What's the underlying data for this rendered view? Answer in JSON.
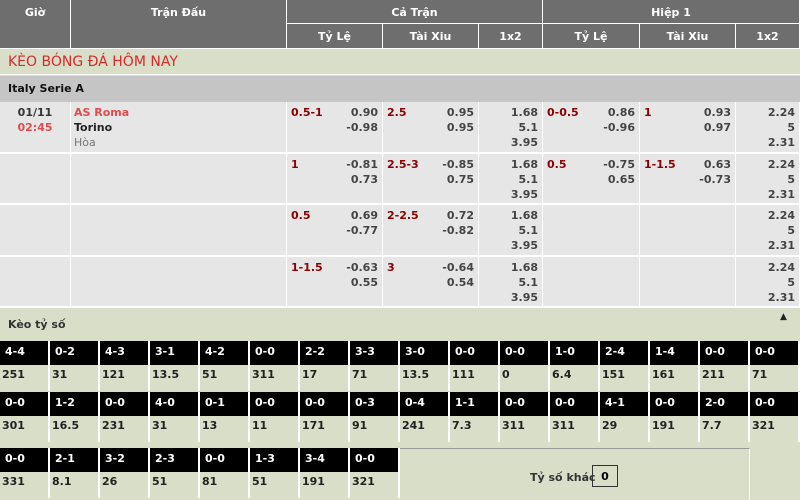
{
  "header": {
    "time": "Giờ",
    "match": "Trận Đấu",
    "full": "Cả Trận",
    "half": "Hiệp 1",
    "handicap": "Tỷ Lệ",
    "overunder": "Tài Xiu",
    "onextwo": "1x2"
  },
  "title": "KÈO BÓNG ĐÁ HÔM NAY",
  "league": "Italy Serie A",
  "match": {
    "date": "01/11",
    "time": "02:45",
    "home": "AS Roma",
    "away": "Torino",
    "draw": "Hòa"
  },
  "rows": [
    {
      "ft_hdp": "0.5-1",
      "ft_hdp_odds": [
        "0.90",
        "-0.98"
      ],
      "ft_ou": "2.5",
      "ft_ou_odds": [
        "0.95",
        "0.95"
      ],
      "ft_1x2": [
        "1.68",
        "5.1",
        "3.95"
      ],
      "h1_hdp": "0-0.5",
      "h1_hdp_odds": [
        "0.86",
        "-0.96"
      ],
      "h1_ou": "1",
      "h1_ou_odds": [
        "0.93",
        "0.97"
      ],
      "h1_1x2": [
        "2.24",
        "5",
        "2.31"
      ]
    },
    {
      "ft_hdp": "1",
      "ft_hdp_odds": [
        "-0.81",
        "0.73"
      ],
      "ft_ou": "2.5-3",
      "ft_ou_odds": [
        "-0.85",
        "0.75"
      ],
      "ft_1x2": [
        "1.68",
        "5.1",
        "3.95"
      ],
      "h1_hdp": "0.5",
      "h1_hdp_odds": [
        "-0.75",
        "0.65"
      ],
      "h1_ou": "1-1.5",
      "h1_ou_odds": [
        "0.63",
        "-0.73"
      ],
      "h1_1x2": [
        "2.24",
        "5",
        "2.31"
      ]
    },
    {
      "ft_hdp": "0.5",
      "ft_hdp_odds": [
        "0.69",
        "-0.77"
      ],
      "ft_ou": "2-2.5",
      "ft_ou_odds": [
        "0.72",
        "-0.82"
      ],
      "ft_1x2": [
        "1.68",
        "5.1",
        "3.95"
      ],
      "h1_hdp": "",
      "h1_hdp_odds": [
        "",
        ""
      ],
      "h1_ou": "",
      "h1_ou_odds": [
        "",
        ""
      ],
      "h1_1x2": [
        "2.24",
        "5",
        "2.31"
      ]
    },
    {
      "ft_hdp": "1-1.5",
      "ft_hdp_odds": [
        "-0.63",
        "0.55"
      ],
      "ft_ou": "3",
      "ft_ou_odds": [
        "-0.64",
        "0.54"
      ],
      "ft_1x2": [
        "1.68",
        "5.1",
        "3.95"
      ],
      "h1_hdp": "",
      "h1_hdp_odds": [
        "",
        ""
      ],
      "h1_ou": "",
      "h1_ou_odds": [
        "",
        ""
      ],
      "h1_1x2": [
        "2.24",
        "5",
        "2.31"
      ]
    }
  ],
  "correct_score": {
    "label": "Kèo tỷ số",
    "collapse_icon": "caret-up-icon",
    "rows": [
      [
        [
          "4-4",
          "251"
        ],
        [
          "0-2",
          "31"
        ],
        [
          "4-3",
          "121"
        ],
        [
          "3-1",
          "13.5"
        ],
        [
          "4-2",
          "51"
        ],
        [
          "0-0",
          "311"
        ],
        [
          "2-2",
          "17"
        ],
        [
          "3-3",
          "71"
        ],
        [
          "3-0",
          "13.5"
        ],
        [
          "0-0",
          "111"
        ],
        [
          "0-0",
          "0"
        ],
        [
          "1-0",
          "6.4"
        ],
        [
          "2-4",
          "151"
        ],
        [
          "1-4",
          "161"
        ],
        [
          "0-0",
          "211"
        ],
        [
          "0-0",
          "71"
        ]
      ],
      [
        [
          "0-0",
          "301"
        ],
        [
          "1-2",
          "16.5"
        ],
        [
          "0-0",
          "231"
        ],
        [
          "4-0",
          "31"
        ],
        [
          "0-1",
          "13"
        ],
        [
          "0-0",
          "11"
        ],
        [
          "0-0",
          "171"
        ],
        [
          "0-3",
          "91"
        ],
        [
          "0-4",
          "241"
        ],
        [
          "1-1",
          "7.3"
        ],
        [
          "0-0",
          "311"
        ],
        [
          "0-0",
          "311"
        ],
        [
          "4-1",
          "29"
        ],
        [
          "0-0",
          "191"
        ],
        [
          "2-0",
          "7.7"
        ],
        [
          "0-0",
          "321"
        ]
      ],
      [
        [
          "0-0",
          "331"
        ],
        [
          "2-1",
          "8.1"
        ],
        [
          "3-2",
          "26"
        ],
        [
          "2-3",
          "51"
        ],
        [
          "0-0",
          "81"
        ],
        [
          "1-3",
          "51"
        ],
        [
          "3-4",
          "191"
        ],
        [
          "0-0",
          "321"
        ]
      ]
    ],
    "other_label": "Tỷ số khác",
    "other_value": "0"
  }
}
